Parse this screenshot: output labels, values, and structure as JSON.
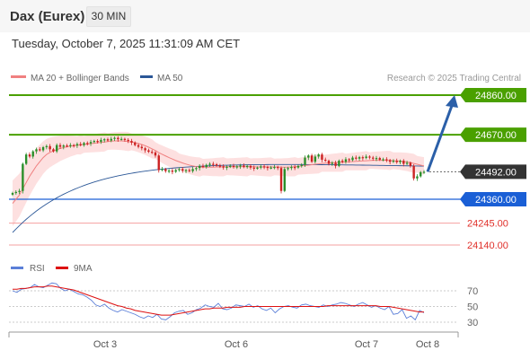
{
  "header": {
    "title": "Dax (Eurex)",
    "timeframe": "30 MIN",
    "datetime": "Tuesday, October 7, 2025 11:31:09 AM CET"
  },
  "legend": {
    "ma20_bb": "MA 20 + Bollinger Bands",
    "ma50": "MA 50",
    "research": "Research © 2025 Trading Central"
  },
  "rsi_legend": {
    "rsi": "RSI",
    "ma9": "9MA"
  },
  "colors": {
    "resistance": "#4aa000",
    "current": "#333333",
    "support": "#1a5fd6",
    "support_secondary": "#e0302a",
    "candle_up": "#2a8f2a",
    "candle_down": "#cc2222",
    "bollinger_fill": "#fde0e0",
    "ma20": "#f08080",
    "ma50": "#2b5797",
    "arrow": "#2b5fa8",
    "rsi": "#5b7fd8",
    "rsi_ma": "#dd1111"
  },
  "chart_data": [
    {
      "type": "candlestick",
      "panel": "price",
      "x_ticks": [
        "Oct 3",
        "Oct 6",
        "Oct 7",
        "Oct 8"
      ],
      "ylim": [
        24080,
        24900
      ],
      "levels": [
        {
          "value": 24860.0,
          "label": "24860.00",
          "kind": "resistance"
        },
        {
          "value": 24670.0,
          "label": "24670.00",
          "kind": "resistance"
        },
        {
          "value": 24492.0,
          "label": "24492.00",
          "kind": "current"
        },
        {
          "value": 24360.0,
          "label": "24360.00",
          "kind": "support"
        },
        {
          "value": 24245.0,
          "label": "24245.00",
          "kind": "support_secondary"
        },
        {
          "value": 24140.0,
          "label": "24140.00",
          "kind": "support_secondary"
        }
      ],
      "projection": {
        "from": 24492,
        "to": 24860
      },
      "close": [
        24390,
        24395,
        24400,
        24530,
        24575,
        24565,
        24590,
        24600,
        24595,
        24610,
        24615,
        24600,
        24590,
        24620,
        24612,
        24618,
        24615,
        24620,
        24618,
        24625,
        24620,
        24630,
        24628,
        24635,
        24640,
        24636,
        24645,
        24648,
        24642,
        24650,
        24655,
        24648,
        24650,
        24645,
        24640,
        24632,
        24620,
        24612,
        24605,
        24595,
        24588,
        24585,
        24570,
        24500,
        24505,
        24495,
        24498,
        24492,
        24500,
        24505,
        24497,
        24500,
        24495,
        24505,
        24510,
        24520,
        24515,
        24525,
        24530,
        24528,
        24522,
        24518,
        24512,
        24516,
        24520,
        24515,
        24518,
        24522,
        24515,
        24520,
        24512,
        24508,
        24512,
        24518,
        24515,
        24510,
        24512,
        24515,
        24510,
        24400,
        24505,
        24510,
        24515,
        24512,
        24520,
        24525,
        24560,
        24570,
        24540,
        24565,
        24575,
        24550,
        24545,
        24530,
        24535,
        24520,
        24545,
        24540,
        24552,
        24548,
        24560,
        24555,
        24562,
        24558,
        24565,
        24560,
        24555,
        24558,
        24550,
        24552,
        24548,
        24540,
        24545,
        24538,
        24545,
        24530,
        24535,
        24520,
        24460,
        24470,
        24490,
        24492
      ],
      "ma20": [
        24340,
        24360,
        24380,
        24410,
        24440,
        24470,
        24495,
        24520,
        24540,
        24560,
        24575,
        24585,
        24592,
        24598,
        24604,
        24608,
        24612,
        24615,
        24617,
        24619,
        24621,
        24623,
        24625,
        24627,
        24629,
        24631,
        24633,
        24635,
        24637,
        24639,
        24640,
        24640,
        24640,
        24639,
        24637,
        24635,
        24632,
        24628,
        24623,
        24617,
        24610,
        24602,
        24594,
        24584,
        24576,
        24568,
        24560,
        24553,
        24546,
        24540,
        24534,
        24529,
        24524,
        24520,
        24517,
        24515,
        24514,
        24514,
        24514,
        24514,
        24515,
        24515,
        24516,
        24516,
        24516,
        24516,
        24516,
        24516,
        24516,
        24516,
        24516,
        24516,
        24515,
        24515,
        24515,
        24515,
        24515,
        24515,
        24515,
        24514,
        24514,
        24514,
        24515,
        24516,
        24518,
        24520,
        24522,
        24524,
        24526,
        24528,
        24530,
        24532,
        24533,
        24534,
        24535,
        24536,
        24537,
        24538,
        24539,
        24540,
        24541,
        24542,
        24543,
        24544,
        24545,
        24546,
        24547,
        24547,
        24547,
        24547,
        24547,
        24546,
        24545,
        24544,
        24543,
        24541,
        24539,
        24536,
        24532,
        24528,
        24524,
        24520
      ]
    },
    {
      "type": "line",
      "panel": "rsi",
      "yticks": [
        30,
        50,
        70
      ],
      "ylim": [
        20,
        85
      ],
      "series": [
        {
          "name": "RSI",
          "values": [
            70,
            68,
            72,
            73,
            74,
            78,
            75,
            74,
            77,
            80,
            79,
            73,
            70,
            72,
            69,
            66,
            65,
            62,
            58,
            52,
            50,
            53,
            48,
            45,
            43,
            46,
            44,
            42,
            40,
            37,
            35,
            38,
            36,
            40,
            34,
            33,
            37,
            42,
            44,
            45,
            40,
            42,
            46,
            48,
            52,
            50,
            49,
            54,
            47,
            46,
            48,
            52,
            51,
            50,
            53,
            49,
            51,
            47,
            45,
            48,
            42,
            47,
            50,
            51,
            49,
            48,
            52,
            53,
            51,
            50,
            49,
            52,
            50,
            52,
            53,
            55,
            54,
            52,
            50,
            53,
            55,
            52,
            49,
            51,
            48,
            46,
            50,
            40,
            41,
            46,
            35,
            38,
            33,
            45,
            42
          ]
        },
        {
          "name": "9MA",
          "values": [
            72,
            72,
            73,
            73,
            74,
            75,
            75,
            75,
            76,
            76,
            75,
            74,
            73,
            72,
            71,
            69,
            67,
            65,
            63,
            61,
            59,
            57,
            55,
            53,
            51,
            50,
            48,
            47,
            45,
            44,
            43,
            42,
            41,
            40,
            39,
            39,
            39,
            40,
            41,
            42,
            43,
            44,
            45,
            46,
            47,
            47,
            48,
            48,
            48,
            49,
            49,
            49,
            49,
            50,
            50,
            50,
            50,
            50,
            50,
            50,
            50,
            50,
            50,
            50,
            50,
            50,
            50,
            50,
            50,
            50,
            50,
            50,
            51,
            51,
            51,
            51,
            51,
            51,
            51,
            51,
            51,
            51,
            51,
            51,
            50,
            50,
            50,
            49,
            48,
            47,
            46,
            45,
            44,
            43,
            43
          ]
        }
      ]
    }
  ]
}
